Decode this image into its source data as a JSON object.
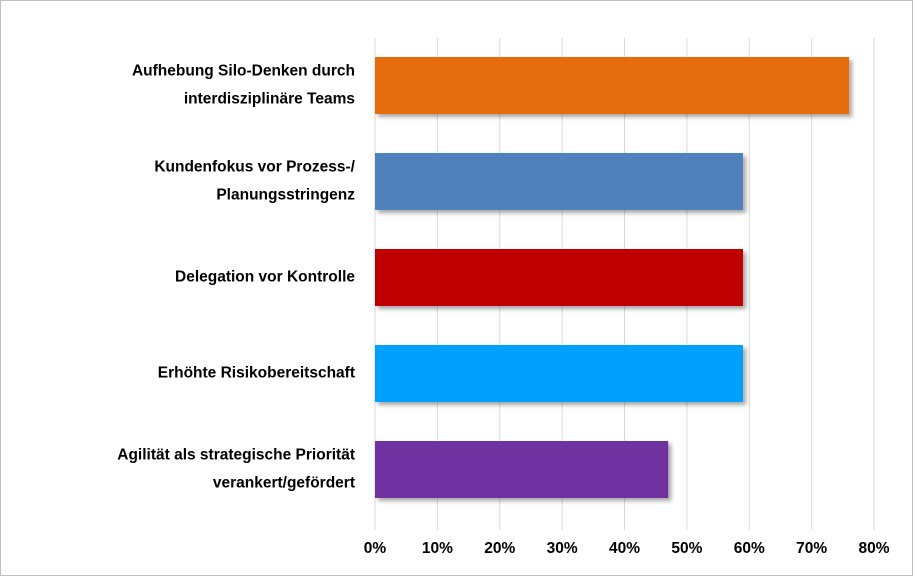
{
  "chart_data": {
    "type": "barh",
    "categories": [
      "Aufhebung Silo-Denken durch\ninterdisziplinäre Teams",
      "Kundenfokus vor Prozess-/\nPlanungsstringenz",
      "Delegation vor Kontrolle",
      "Erhöhte Risikobereitschaft",
      "Agilität als strategische Priorität\nverankert/gefördert"
    ],
    "values": [
      76,
      59,
      59,
      59,
      47
    ],
    "colors": [
      "#e46c0a",
      "#4f81bd",
      "#c00000",
      "#00a0ff",
      "#7030a0"
    ],
    "xlim": [
      0,
      80
    ],
    "xticks": [
      {
        "value": 0,
        "label": "0%"
      },
      {
        "value": 10,
        "label": "10%"
      },
      {
        "value": 20,
        "label": "20%"
      },
      {
        "value": 30,
        "label": "30%"
      },
      {
        "value": 40,
        "label": "40%"
      },
      {
        "value": 50,
        "label": "50%"
      },
      {
        "value": 60,
        "label": "60%"
      },
      {
        "value": 70,
        "label": "70%"
      },
      {
        "value": 80,
        "label": "80%"
      }
    ],
    "grid": true
  }
}
